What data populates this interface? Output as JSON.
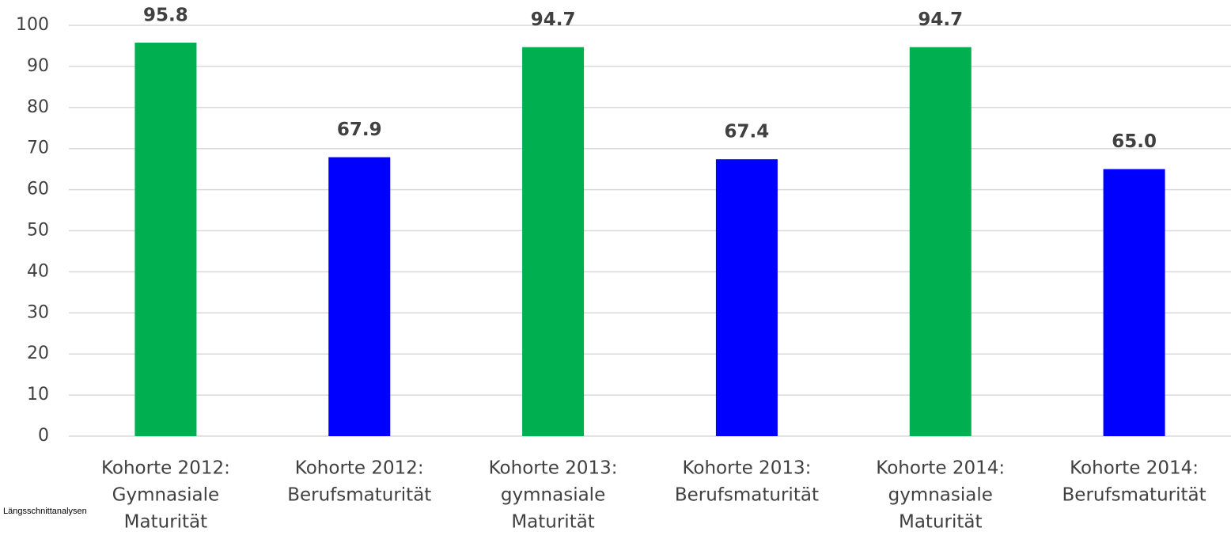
{
  "chart_data": {
    "type": "bar",
    "annotation": "Längsschnittanalysen",
    "categories": [
      [
        "Kohorte 2012:",
        "Gymnasiale",
        "Maturität"
      ],
      [
        "Kohorte 2012:",
        "Berufsmaturität"
      ],
      [
        "Kohorte 2013:",
        "gymnasiale",
        "Maturität"
      ],
      [
        "Kohorte 2013:",
        "Berufsmaturität"
      ],
      [
        "Kohorte 2014:",
        "gymnasiale",
        "Maturität"
      ],
      [
        "Kohorte 2014:",
        "Berufsmaturität"
      ]
    ],
    "values": [
      95.8,
      67.9,
      94.7,
      67.4,
      94.7,
      65.0
    ],
    "value_labels": [
      "95.8",
      "67.9",
      "94.7",
      "67.4",
      "94.7",
      "65.0"
    ],
    "colors": [
      "#00b050",
      "#0000ff",
      "#00b050",
      "#0000ff",
      "#00b050",
      "#0000ff"
    ],
    "ylim": [
      0,
      100
    ],
    "yticks": [
      0,
      10,
      20,
      30,
      40,
      50,
      60,
      70,
      80,
      90,
      100
    ],
    "grid": true
  }
}
